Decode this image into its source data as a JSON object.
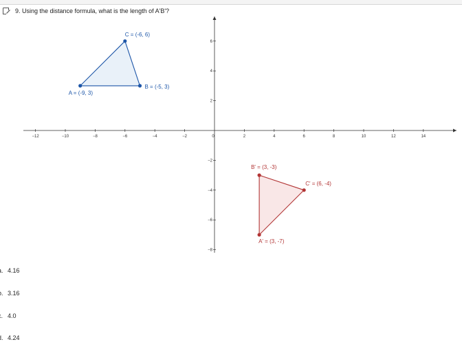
{
  "question": {
    "text": "9. Using the distance formula, what is the length of A'B'?",
    "icon": "checkbox-icon"
  },
  "choices": [
    {
      "letter": "a.",
      "text": "4.16"
    },
    {
      "letter": "b.",
      "text": "3.16"
    },
    {
      "letter": "c.",
      "text": "4.0"
    },
    {
      "letter": "d.",
      "text": "4.24"
    }
  ],
  "graph": {
    "x_ticks": [
      -12,
      -10,
      -8,
      -6,
      -4,
      -2,
      0,
      2,
      4,
      6,
      8,
      10,
      12,
      14
    ],
    "y_ticks": [
      -8,
      -6,
      -4,
      -2,
      2,
      4,
      6
    ],
    "colors": {
      "blue": "#1d56a8",
      "blue_fill": "#e5eef8",
      "red": "#b23535",
      "red_fill": "#f8e3e3",
      "axis": "#333333"
    },
    "triangles": [
      {
        "name": "ABC",
        "color": "blue",
        "points": [
          {
            "x": -9,
            "y": 3,
            "label": "A = (-9, 3)"
          },
          {
            "x": -5,
            "y": 3,
            "label": "B = (-5, 3)"
          },
          {
            "x": -6,
            "y": 6,
            "label": "C = (-6, 6)"
          }
        ]
      },
      {
        "name": "A'B'C'",
        "color": "red",
        "points": [
          {
            "x": 3,
            "y": -7,
            "label": "A' = (3, -7)"
          },
          {
            "x": 3,
            "y": -3,
            "label": "B' = (3, -3)"
          },
          {
            "x": 6,
            "y": -4,
            "label": "C' = (6, -4)"
          }
        ]
      }
    ]
  }
}
